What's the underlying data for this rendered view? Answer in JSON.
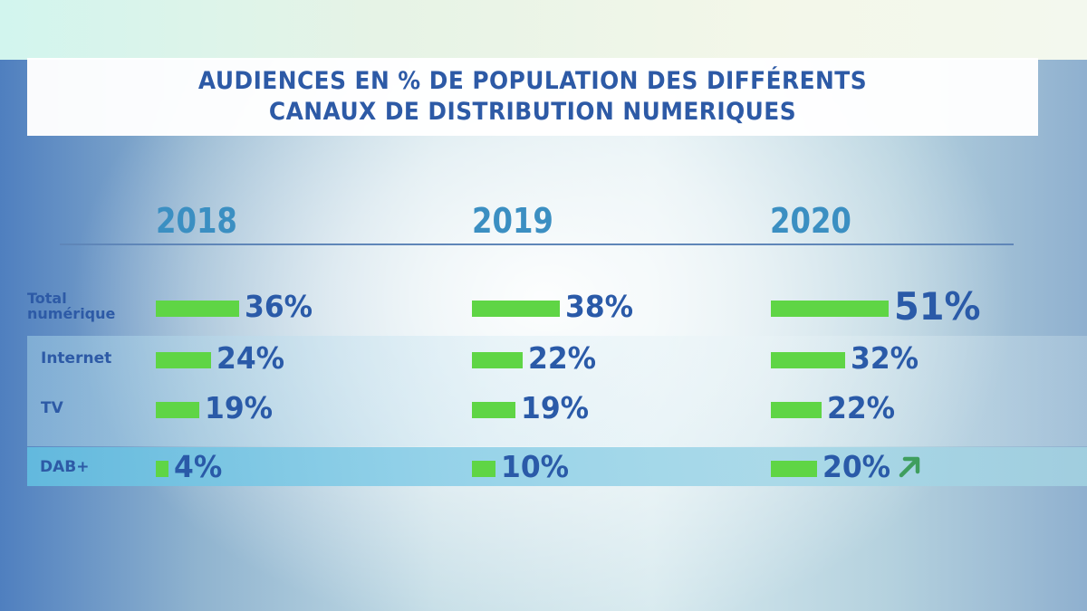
{
  "title": {
    "line1": "AUDIENCES EN % DE POPULATION DES DIFFÉRENTS",
    "line2": "CANAUX DE DISTRIBUTION NUMERIQUES"
  },
  "colors": {
    "title_text": "#2d5aa6",
    "year_text": "#3b8fc2",
    "bar": "#5fd545",
    "value_text": "#2a5aa8",
    "arrow": "#3f9e5e"
  },
  "chart_data": {
    "type": "bar",
    "orientation": "horizontal",
    "title": "AUDIENCES EN % DE POPULATION DES DIFFÉRENTS CANAUX DE DISTRIBUTION NUMERIQUES",
    "unit": "%",
    "groups": [
      "2018",
      "2019",
      "2020"
    ],
    "categories": [
      "Total numérique",
      "Internet",
      "TV",
      "DAB+"
    ],
    "series": [
      {
        "name": "2018",
        "values": [
          36,
          24,
          19,
          4
        ],
        "labels": [
          "36%",
          "24%",
          "19%",
          "4%"
        ]
      },
      {
        "name": "2019",
        "values": [
          38,
          22,
          19,
          10
        ],
        "labels": [
          "38%",
          "22%",
          "19%",
          "10%"
        ]
      },
      {
        "name": "2020",
        "values": [
          51,
          32,
          22,
          20
        ],
        "labels": [
          "51%",
          "32%",
          "22%",
          "20%"
        ]
      }
    ],
    "annotations": [
      {
        "target": "DAB+ 2020",
        "icon": "arrow-up-right-icon",
        "meaning": "increase"
      }
    ],
    "grid": false,
    "legend": "none"
  },
  "rows": [
    {
      "label_line1": "Total",
      "label_line2": "numérique"
    },
    {
      "label": "Internet"
    },
    {
      "label": "TV"
    },
    {
      "label": "DAB+"
    }
  ]
}
